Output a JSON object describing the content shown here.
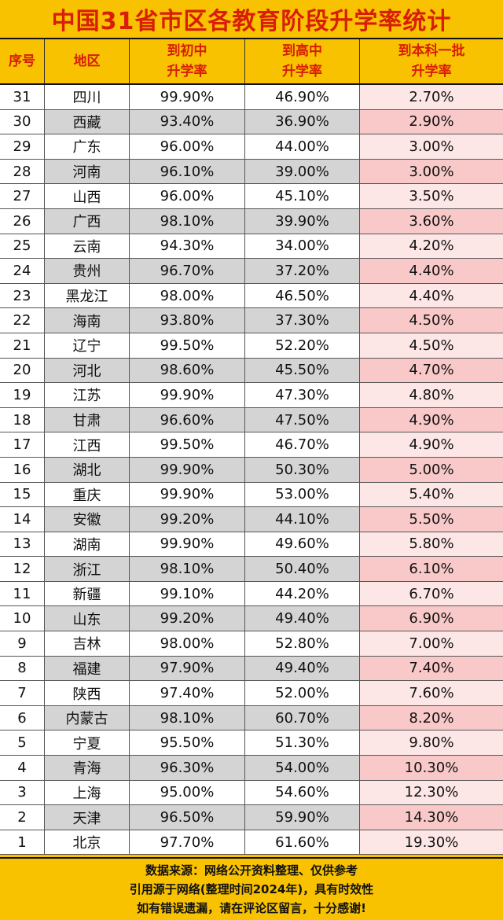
{
  "title": "中国31省市区各教育阶段升学率统计",
  "chart_data": {
    "type": "table",
    "title": "中国31省市区各教育阶段升学率统计",
    "columns": [
      {
        "key": "rank",
        "lines": [
          "序号"
        ]
      },
      {
        "key": "region",
        "lines": [
          "地区"
        ]
      },
      {
        "key": "junior",
        "lines": [
          "到初中",
          "升学率"
        ]
      },
      {
        "key": "senior",
        "lines": [
          "到高中",
          "升学率"
        ]
      },
      {
        "key": "undergrad",
        "lines": [
          "到本科一批",
          "升学率"
        ]
      }
    ],
    "rows": [
      {
        "rank": "31",
        "region": "四川",
        "junior": "99.90%",
        "senior": "46.90%",
        "undergrad": "2.70%"
      },
      {
        "rank": "30",
        "region": "西藏",
        "junior": "93.40%",
        "senior": "36.90%",
        "undergrad": "2.90%"
      },
      {
        "rank": "29",
        "region": "广东",
        "junior": "96.00%",
        "senior": "44.00%",
        "undergrad": "3.00%"
      },
      {
        "rank": "28",
        "region": "河南",
        "junior": "96.10%",
        "senior": "39.00%",
        "undergrad": "3.00%"
      },
      {
        "rank": "27",
        "region": "山西",
        "junior": "96.00%",
        "senior": "45.10%",
        "undergrad": "3.50%"
      },
      {
        "rank": "26",
        "region": "广西",
        "junior": "98.10%",
        "senior": "39.90%",
        "undergrad": "3.60%"
      },
      {
        "rank": "25",
        "region": "云南",
        "junior": "94.30%",
        "senior": "34.00%",
        "undergrad": "4.20%"
      },
      {
        "rank": "24",
        "region": "贵州",
        "junior": "96.70%",
        "senior": "37.20%",
        "undergrad": "4.40%"
      },
      {
        "rank": "23",
        "region": "黑龙江",
        "junior": "98.00%",
        "senior": "46.50%",
        "undergrad": "4.40%"
      },
      {
        "rank": "22",
        "region": "海南",
        "junior": "93.80%",
        "senior": "37.30%",
        "undergrad": "4.50%"
      },
      {
        "rank": "21",
        "region": "辽宁",
        "junior": "99.50%",
        "senior": "52.20%",
        "undergrad": "4.50%"
      },
      {
        "rank": "20",
        "region": "河北",
        "junior": "98.60%",
        "senior": "45.50%",
        "undergrad": "4.70%"
      },
      {
        "rank": "19",
        "region": "江苏",
        "junior": "99.90%",
        "senior": "47.30%",
        "undergrad": "4.80%"
      },
      {
        "rank": "18",
        "region": "甘肃",
        "junior": "96.60%",
        "senior": "47.50%",
        "undergrad": "4.90%"
      },
      {
        "rank": "17",
        "region": "江西",
        "junior": "99.50%",
        "senior": "46.70%",
        "undergrad": "4.90%"
      },
      {
        "rank": "16",
        "region": "湖北",
        "junior": "99.90%",
        "senior": "50.30%",
        "undergrad": "5.00%"
      },
      {
        "rank": "15",
        "region": "重庆",
        "junior": "99.90%",
        "senior": "53.00%",
        "undergrad": "5.40%"
      },
      {
        "rank": "14",
        "region": "安徽",
        "junior": "99.20%",
        "senior": "44.10%",
        "undergrad": "5.50%"
      },
      {
        "rank": "13",
        "region": "湖南",
        "junior": "99.90%",
        "senior": "49.60%",
        "undergrad": "5.80%"
      },
      {
        "rank": "12",
        "region": "浙江",
        "junior": "98.10%",
        "senior": "50.40%",
        "undergrad": "6.10%"
      },
      {
        "rank": "11",
        "region": "新疆",
        "junior": "99.10%",
        "senior": "44.20%",
        "undergrad": "6.70%"
      },
      {
        "rank": "10",
        "region": "山东",
        "junior": "99.20%",
        "senior": "49.40%",
        "undergrad": "6.90%"
      },
      {
        "rank": "9",
        "region": "吉林",
        "junior": "98.00%",
        "senior": "52.80%",
        "undergrad": "7.00%"
      },
      {
        "rank": "8",
        "region": "福建",
        "junior": "97.90%",
        "senior": "49.40%",
        "undergrad": "7.40%"
      },
      {
        "rank": "7",
        "region": "陕西",
        "junior": "97.40%",
        "senior": "52.00%",
        "undergrad": "7.60%"
      },
      {
        "rank": "6",
        "region": "内蒙古",
        "junior": "98.10%",
        "senior": "60.70%",
        "undergrad": "8.20%"
      },
      {
        "rank": "5",
        "region": "宁夏",
        "junior": "95.50%",
        "senior": "51.30%",
        "undergrad": "9.80%"
      },
      {
        "rank": "4",
        "region": "青海",
        "junior": "96.30%",
        "senior": "54.00%",
        "undergrad": "10.30%"
      },
      {
        "rank": "3",
        "region": "上海",
        "junior": "95.00%",
        "senior": "54.60%",
        "undergrad": "12.30%"
      },
      {
        "rank": "2",
        "region": "天津",
        "junior": "96.50%",
        "senior": "59.90%",
        "undergrad": "14.30%"
      },
      {
        "rank": "1",
        "region": "北京",
        "junior": "97.70%",
        "senior": "61.60%",
        "undergrad": "19.30%"
      }
    ]
  },
  "footer": {
    "lines": [
      "数据来源：网络公开资料整理、仅供参考",
      "引用源于网络(整理时间2024年)，具有时效性",
      "如有错误遗漏，请在评论区留言，十分感谢!"
    ]
  },
  "colors": {
    "background": "#f8c200",
    "title": "#d81e06",
    "row_white": "#ffffff",
    "row_gray": "#d4d4d4",
    "pink_light": "#fde6e6",
    "pink_dark": "#f9c9c9"
  }
}
